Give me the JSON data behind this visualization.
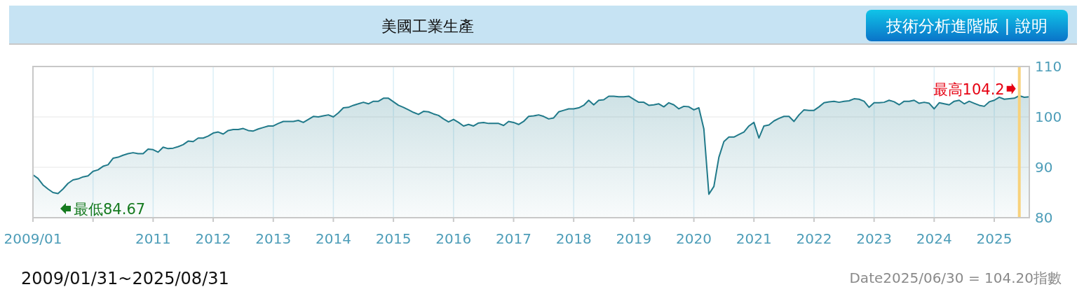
{
  "chart_data": {
    "type": "area",
    "title": "美國工業生產",
    "x": [
      "2009-01",
      "2009-02",
      "2009-03",
      "2009-04",
      "2009-05",
      "2009-06",
      "2009-07",
      "2009-08",
      "2009-09",
      "2009-10",
      "2009-11",
      "2009-12",
      "2010-01",
      "2010-02",
      "2010-03",
      "2010-04",
      "2010-05",
      "2010-06",
      "2010-07",
      "2010-08",
      "2010-09",
      "2010-10",
      "2010-11",
      "2010-12",
      "2011-01",
      "2011-02",
      "2011-03",
      "2011-04",
      "2011-05",
      "2011-06",
      "2011-07",
      "2011-08",
      "2011-09",
      "2011-10",
      "2011-11",
      "2011-12",
      "2012-01",
      "2012-02",
      "2012-03",
      "2012-04",
      "2012-05",
      "2012-06",
      "2012-07",
      "2012-08",
      "2012-09",
      "2012-10",
      "2012-11",
      "2012-12",
      "2013-01",
      "2013-02",
      "2013-03",
      "2013-04",
      "2013-05",
      "2013-06",
      "2013-07",
      "2013-08",
      "2013-09",
      "2013-10",
      "2013-11",
      "2013-12",
      "2014-01",
      "2014-02",
      "2014-03",
      "2014-04",
      "2014-05",
      "2014-06",
      "2014-07",
      "2014-08",
      "2014-09",
      "2014-10",
      "2014-11",
      "2014-12",
      "2015-01",
      "2015-02",
      "2015-03",
      "2015-04",
      "2015-05",
      "2015-06",
      "2015-07",
      "2015-08",
      "2015-09",
      "2015-10",
      "2015-11",
      "2015-12",
      "2016-01",
      "2016-02",
      "2016-03",
      "2016-04",
      "2016-05",
      "2016-06",
      "2016-07",
      "2016-08",
      "2016-09",
      "2016-10",
      "2016-11",
      "2016-12",
      "2017-01",
      "2017-02",
      "2017-03",
      "2017-04",
      "2017-05",
      "2017-06",
      "2017-07",
      "2017-08",
      "2017-09",
      "2017-10",
      "2017-11",
      "2017-12",
      "2018-01",
      "2018-02",
      "2018-03",
      "2018-04",
      "2018-05",
      "2018-06",
      "2018-07",
      "2018-08",
      "2018-09",
      "2018-10",
      "2018-11",
      "2018-12",
      "2019-01",
      "2019-02",
      "2019-03",
      "2019-04",
      "2019-05",
      "2019-06",
      "2019-07",
      "2019-08",
      "2019-09",
      "2019-10",
      "2019-11",
      "2019-12",
      "2020-01",
      "2020-02",
      "2020-03",
      "2020-04",
      "2020-05",
      "2020-06",
      "2020-07",
      "2020-08",
      "2020-09",
      "2020-10",
      "2020-11",
      "2020-12",
      "2021-01",
      "2021-02",
      "2021-03",
      "2021-04",
      "2021-05",
      "2021-06",
      "2021-07",
      "2021-08",
      "2021-09",
      "2021-10",
      "2021-11",
      "2021-12",
      "2022-01",
      "2022-02",
      "2022-03",
      "2022-04",
      "2022-05",
      "2022-06",
      "2022-07",
      "2022-08",
      "2022-09",
      "2022-10",
      "2022-11",
      "2022-12",
      "2023-01",
      "2023-02",
      "2023-03",
      "2023-04",
      "2023-05",
      "2023-06",
      "2023-07",
      "2023-08",
      "2023-09",
      "2023-10",
      "2023-11",
      "2023-12",
      "2024-01",
      "2024-02",
      "2024-03",
      "2024-04",
      "2024-05",
      "2024-06",
      "2024-07",
      "2024-08",
      "2024-09",
      "2024-10",
      "2024-11",
      "2024-12",
      "2025-01",
      "2025-02",
      "2025-03",
      "2025-04",
      "2025-05",
      "2025-06",
      "2025-07",
      "2025-08"
    ],
    "series": [
      {
        "color": "#217a8a",
        "values": [
          88.5,
          87.8,
          86.5,
          85.7,
          85.0,
          84.8,
          85.7,
          86.8,
          87.5,
          87.7,
          88.1,
          88.3,
          89.2,
          89.5,
          90.2,
          90.5,
          91.8,
          92.0,
          92.4,
          92.7,
          92.9,
          92.7,
          92.7,
          93.6,
          93.5,
          93.0,
          94.0,
          93.7,
          93.8,
          94.1,
          94.5,
          95.2,
          95.1,
          95.8,
          95.8,
          96.2,
          96.8,
          97.0,
          96.6,
          97.3,
          97.5,
          97.5,
          97.7,
          97.3,
          97.2,
          97.6,
          97.9,
          98.2,
          98.2,
          98.7,
          99.1,
          99.1,
          99.1,
          99.3,
          98.9,
          99.5,
          100.1,
          100.0,
          100.2,
          100.4,
          100.0,
          100.8,
          101.8,
          101.9,
          102.3,
          102.6,
          102.9,
          102.6,
          103.1,
          103.1,
          103.7,
          103.7,
          103.0,
          102.3,
          101.9,
          101.4,
          100.9,
          100.5,
          101.1,
          101.0,
          100.6,
          100.3,
          99.6,
          99.0,
          99.5,
          98.9,
          98.2,
          98.5,
          98.2,
          98.8,
          98.9,
          98.7,
          98.7,
          98.7,
          98.3,
          99.1,
          98.9,
          98.5,
          99.1,
          100.1,
          100.2,
          100.4,
          100.1,
          99.6,
          99.8,
          101.0,
          101.3,
          101.6,
          101.6,
          101.8,
          102.3,
          103.3,
          102.4,
          103.3,
          103.4,
          104.1,
          104.1,
          104.0,
          104.0,
          104.1,
          103.5,
          102.9,
          102.9,
          102.3,
          102.4,
          102.6,
          102.0,
          102.8,
          102.4,
          101.6,
          102.1,
          102.0,
          101.4,
          101.8,
          97.6,
          84.67,
          86.2,
          92.0,
          95.1,
          96.0,
          96.0,
          96.5,
          97.0,
          98.2,
          98.9,
          95.8,
          98.2,
          98.4,
          99.2,
          99.7,
          100.1,
          100.1,
          99.1,
          100.4,
          101.4,
          101.3,
          101.3,
          102.0,
          102.8,
          103.0,
          103.1,
          102.9,
          103.1,
          103.2,
          103.6,
          103.5,
          103.1,
          101.9,
          102.8,
          102.8,
          102.9,
          103.3,
          103.0,
          102.4,
          103.1,
          103.1,
          103.3,
          102.7,
          102.9,
          102.7,
          101.6,
          102.8,
          102.6,
          102.4,
          103.1,
          103.3,
          102.6,
          103.1,
          102.7,
          102.3,
          102.1,
          103.0,
          103.3,
          103.9,
          103.5,
          103.6,
          103.7,
          104.2,
          103.9,
          104.0
        ]
      }
    ],
    "xlim": [
      "2009-01",
      "2025-08"
    ],
    "xticks": [
      {
        "value": "2009-01",
        "label": "2009/01"
      },
      {
        "value": "2010",
        "label": null
      },
      "2011",
      "2012",
      "2013",
      "2014",
      "2015",
      "2016",
      "2017",
      "2018",
      "2019",
      "2020",
      "2021",
      "2022",
      "2023",
      "2024",
      "2025"
    ],
    "ylim": [
      80,
      110
    ],
    "yticks": [
      80,
      90,
      100,
      110
    ],
    "grid": true,
    "ref_lines": [
      {
        "axis": "x",
        "value": "2025-06",
        "color": "#f8d27c"
      }
    ],
    "annotations": [
      "最低84.67",
      {
        "text": "最高104.2",
        "x": "2025-06",
        "y": 104.2
      },
      "2009/01/31~2025/08/31",
      "Date2025/06/30 = 104.20指數",
      "技術分析進階版 | 說明"
    ]
  }
}
